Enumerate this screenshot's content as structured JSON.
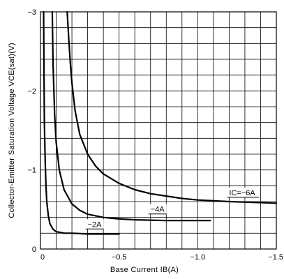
{
  "chart_data": {
    "type": "line",
    "title": "",
    "xlabel": "Base Current IB(A)",
    "ylabel": "Collector-Emitter Saturation Voltage VCE(sat)(V)",
    "xlim": [
      0,
      -1.5
    ],
    "ylim": [
      0,
      -3
    ],
    "grid": true,
    "x_grid_step": -0.1,
    "y_grid_step": -0.2,
    "x_ticks": [
      0,
      -0.5,
      -1.0,
      -1.5
    ],
    "x_tick_labels": [
      "0",
      "−0.5",
      "−1.0",
      "−1.5"
    ],
    "y_ticks": [
      0,
      -1,
      -2,
      -3
    ],
    "y_tick_labels": [
      "0",
      "−1",
      "−2",
      "−3"
    ],
    "series": [
      {
        "name": "−2A",
        "x": [
          -0.02,
          -0.022,
          -0.025,
          -0.03,
          -0.035,
          -0.04,
          -0.05,
          -0.06,
          -0.08,
          -0.1,
          -0.15,
          -0.2,
          -0.3,
          -0.4,
          -0.5
        ],
        "y": [
          -3.0,
          -2.3,
          -1.6,
          -1.1,
          -0.8,
          -0.6,
          -0.42,
          -0.32,
          -0.25,
          -0.22,
          -0.2,
          -0.2,
          -0.19,
          -0.19,
          -0.19
        ]
      },
      {
        "name": "−4A",
        "x": [
          -0.075,
          -0.08,
          -0.09,
          -0.1,
          -0.12,
          -0.15,
          -0.2,
          -0.25,
          -0.3,
          -0.4,
          -0.5,
          -0.6,
          -0.8,
          -1.0,
          -1.08
        ],
        "y": [
          -3.0,
          -2.35,
          -1.7,
          -1.35,
          -1.0,
          -0.75,
          -0.57,
          -0.49,
          -0.44,
          -0.4,
          -0.38,
          -0.37,
          -0.36,
          -0.36,
          -0.36
        ]
      },
      {
        "name": "IC=−6A",
        "x": [
          -0.17,
          -0.18,
          -0.19,
          -0.2,
          -0.22,
          -0.25,
          -0.3,
          -0.35,
          -0.4,
          -0.5,
          -0.6,
          -0.7,
          -0.8,
          -0.9,
          -1.0,
          -1.2,
          -1.5
        ],
        "y": [
          -3.0,
          -2.65,
          -2.35,
          -2.1,
          -1.75,
          -1.45,
          -1.2,
          -1.05,
          -0.95,
          -0.83,
          -0.75,
          -0.7,
          -0.67,
          -0.64,
          -0.62,
          -0.6,
          -0.58
        ]
      }
    ],
    "annotations": [
      {
        "text": "−2A",
        "x": -0.3,
        "y": -0.28
      },
      {
        "text": "−4A",
        "x": -0.7,
        "y": -0.47
      },
      {
        "text": "IC=−6A",
        "x": -1.2,
        "y": -0.68
      }
    ]
  }
}
